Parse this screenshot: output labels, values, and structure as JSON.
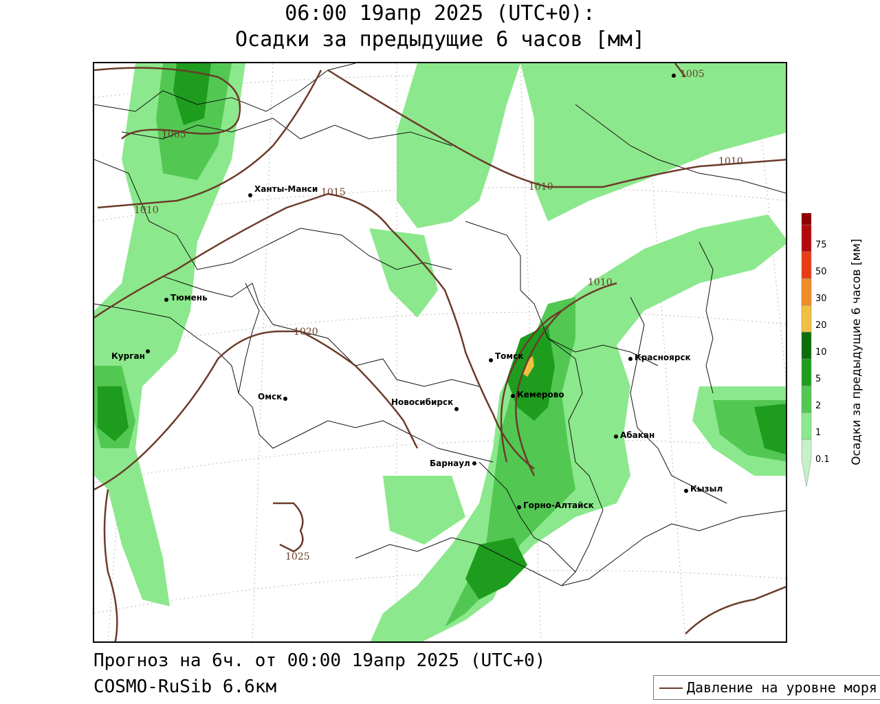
{
  "header": {
    "line1": "06:00 19апр 2025 (UTC+0):",
    "line2": "Осадки за предыдущие 6 часов [мм]"
  },
  "footer": {
    "forecast": "Прогноз на 6ч. от 00:00 19апр 2025 (UTC+0)",
    "model": "COSMO-RuSib 6.6км"
  },
  "legend": {
    "pressure": "Давление на уровне моря",
    "color": "#6b3b2a"
  },
  "colorbar": {
    "title": "Осадки за предыдущие 6 часов [мм]",
    "levels": [
      "0.1",
      "1",
      "2",
      "5",
      "10",
      "20",
      "30",
      "50",
      "75"
    ],
    "colors": [
      "#c6f0c6",
      "#8ce88c",
      "#52c852",
      "#1e9c1e",
      "#0a6e0a",
      "#f2c040",
      "#f28c28",
      "#e83c14",
      "#b40a0a",
      "#8c0000",
      "#a0a0a0"
    ]
  },
  "cities": [
    {
      "name": "Ханты-Манси"
    },
    {
      "name": "Тюмень"
    },
    {
      "name": "Курган"
    },
    {
      "name": "Омск"
    },
    {
      "name": "Новосибирск"
    },
    {
      "name": "Томск"
    },
    {
      "name": "Кемерово"
    },
    {
      "name": "Барнаул"
    },
    {
      "name": "Горно-Алтайск"
    },
    {
      "name": "Абакан"
    },
    {
      "name": "Красноярск"
    },
    {
      "name": "Кызыл"
    }
  ],
  "isobars": [
    "1005",
    "1005",
    "1010",
    "1010",
    "1010",
    "1010",
    "1015",
    "1020",
    "1025"
  ]
}
